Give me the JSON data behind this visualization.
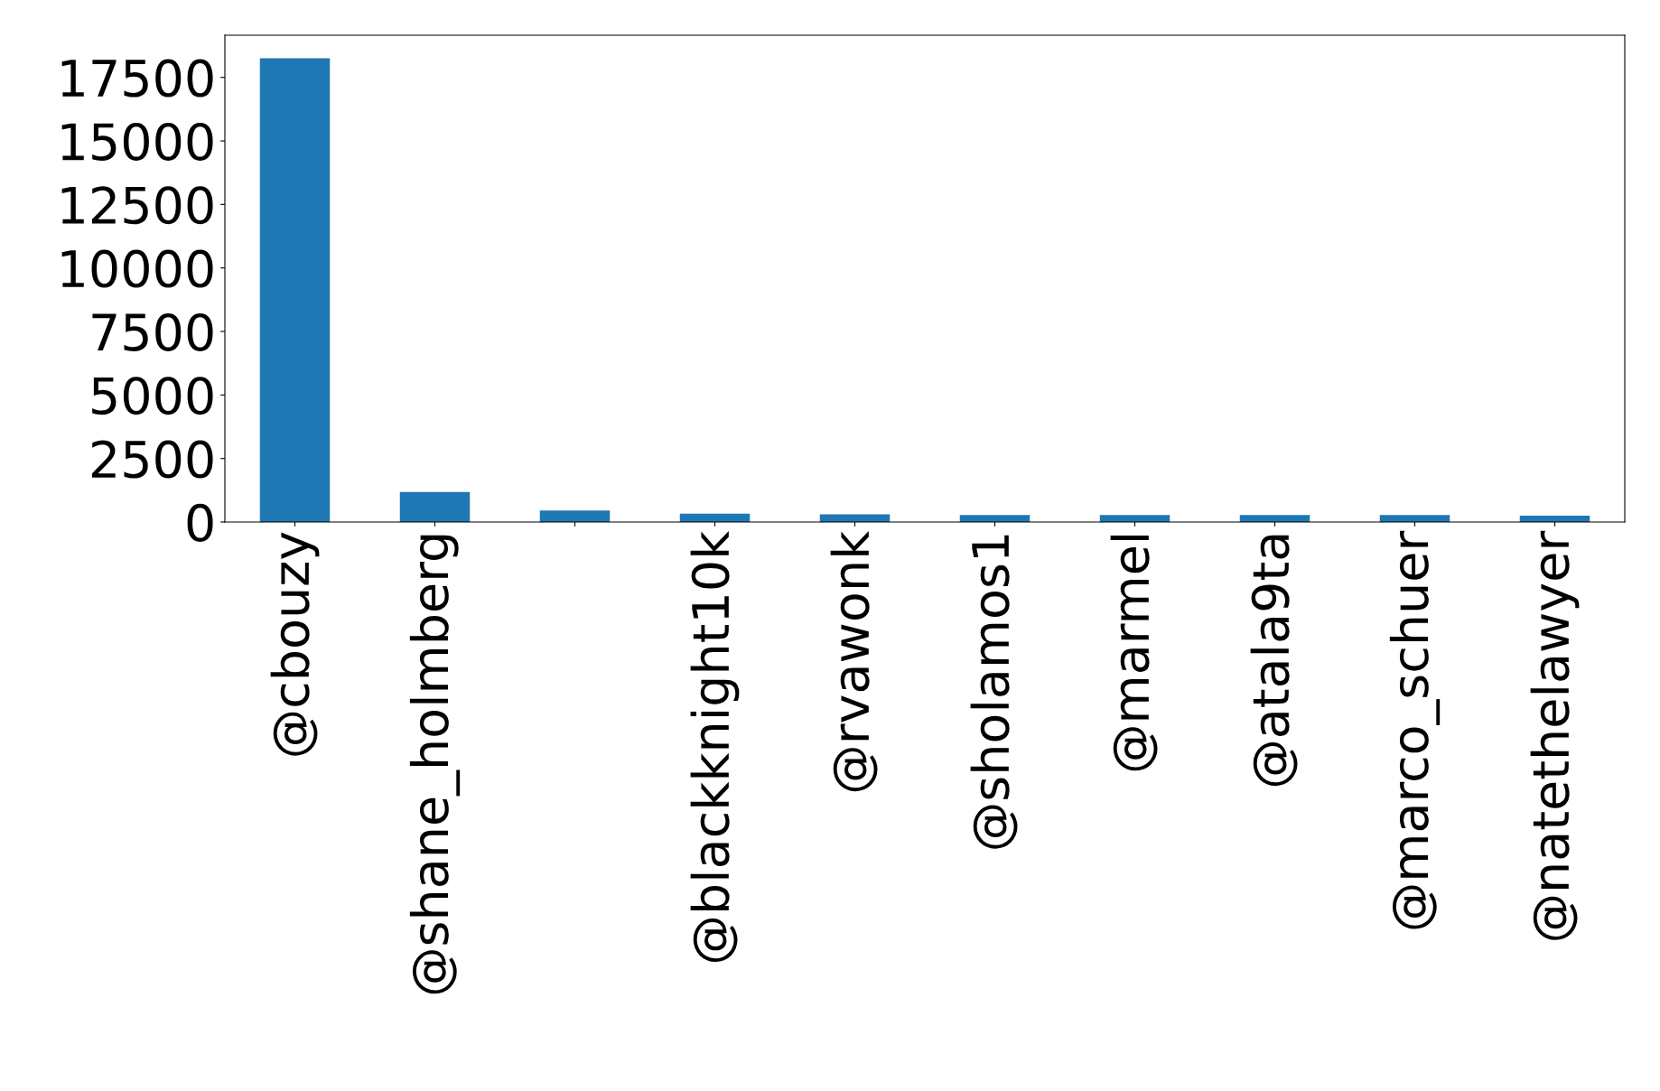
{
  "chart_data": {
    "type": "bar",
    "categories": [
      "@cbouzy",
      "@shane_holmberg",
      null,
      "@blackknight10k",
      "@rvawonk",
      "@sholamos1",
      "@marmel",
      "@atala9ta",
      "@marco_schuer",
      "@natethelawyer"
    ],
    "values": [
      18250,
      1180,
      450,
      330,
      300,
      275,
      275,
      275,
      275,
      245
    ],
    "color": "#1f77b4",
    "ylim": [
      0,
      19160
    ],
    "yticks": [
      0,
      2500,
      5000,
      7500,
      10000,
      12500,
      15000,
      17500
    ],
    "grid": false,
    "legend": false
  }
}
